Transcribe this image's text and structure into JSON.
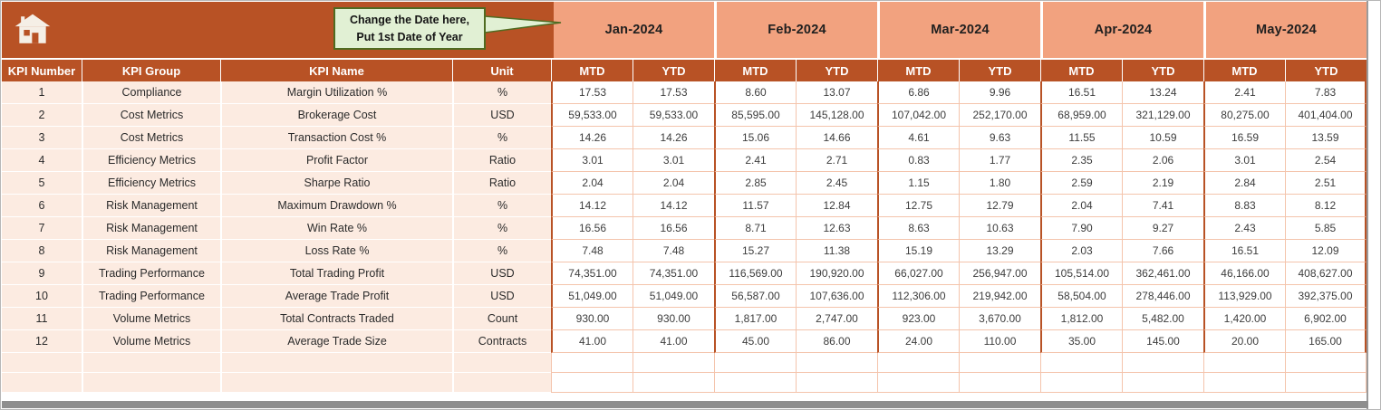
{
  "icons": {
    "home": "home-icon",
    "callout_pointer": "callout-pointer-icon"
  },
  "callout": {
    "line1": "Change the Date here,",
    "line2": "Put 1st Date of Year"
  },
  "table": {
    "left_headers": [
      "KPI Number",
      "KPI Group",
      "KPI Name",
      "Unit"
    ],
    "months": [
      "Jan-2024",
      "Feb-2024",
      "Mar-2024",
      "Apr-2024",
      "May-2024"
    ],
    "period_headers": [
      "MTD",
      "YTD"
    ],
    "rows": [
      {
        "kpi_number": "1",
        "kpi_group": "Compliance",
        "kpi_name": "Margin Utilization %",
        "unit": "%",
        "values": [
          "17.53",
          "17.53",
          "8.60",
          "13.07",
          "6.86",
          "9.96",
          "16.51",
          "13.24",
          "2.41",
          "7.83"
        ]
      },
      {
        "kpi_number": "2",
        "kpi_group": "Cost Metrics",
        "kpi_name": "Brokerage Cost",
        "unit": "USD",
        "values": [
          "59,533.00",
          "59,533.00",
          "85,595.00",
          "145,128.00",
          "107,042.00",
          "252,170.00",
          "68,959.00",
          "321,129.00",
          "80,275.00",
          "401,404.00"
        ]
      },
      {
        "kpi_number": "3",
        "kpi_group": "Cost Metrics",
        "kpi_name": "Transaction Cost %",
        "unit": "%",
        "values": [
          "14.26",
          "14.26",
          "15.06",
          "14.66",
          "4.61",
          "9.63",
          "11.55",
          "10.59",
          "16.59",
          "13.59"
        ]
      },
      {
        "kpi_number": "4",
        "kpi_group": "Efficiency Metrics",
        "kpi_name": "Profit Factor",
        "unit": "Ratio",
        "values": [
          "3.01",
          "3.01",
          "2.41",
          "2.71",
          "0.83",
          "1.77",
          "2.35",
          "2.06",
          "3.01",
          "2.54"
        ]
      },
      {
        "kpi_number": "5",
        "kpi_group": "Efficiency Metrics",
        "kpi_name": "Sharpe Ratio",
        "unit": "Ratio",
        "values": [
          "2.04",
          "2.04",
          "2.85",
          "2.45",
          "1.15",
          "1.80",
          "2.59",
          "2.19",
          "2.84",
          "2.51"
        ]
      },
      {
        "kpi_number": "6",
        "kpi_group": "Risk Management",
        "kpi_name": "Maximum Drawdown %",
        "unit": "%",
        "values": [
          "14.12",
          "14.12",
          "11.57",
          "12.84",
          "12.75",
          "12.79",
          "2.04",
          "7.41",
          "8.83",
          "8.12"
        ]
      },
      {
        "kpi_number": "7",
        "kpi_group": "Risk Management",
        "kpi_name": "Win Rate %",
        "unit": "%",
        "values": [
          "16.56",
          "16.56",
          "8.71",
          "12.63",
          "8.63",
          "10.63",
          "7.90",
          "9.27",
          "2.43",
          "5.85"
        ]
      },
      {
        "kpi_number": "8",
        "kpi_group": "Risk Management",
        "kpi_name": "Loss Rate %",
        "unit": "%",
        "values": [
          "7.48",
          "7.48",
          "15.27",
          "11.38",
          "15.19",
          "13.29",
          "2.03",
          "7.66",
          "16.51",
          "12.09"
        ]
      },
      {
        "kpi_number": "9",
        "kpi_group": "Trading Performance",
        "kpi_name": "Total Trading Profit",
        "unit": "USD",
        "values": [
          "74,351.00",
          "74,351.00",
          "116,569.00",
          "190,920.00",
          "66,027.00",
          "256,947.00",
          "105,514.00",
          "362,461.00",
          "46,166.00",
          "408,627.00"
        ]
      },
      {
        "kpi_number": "10",
        "kpi_group": "Trading Performance",
        "kpi_name": "Average Trade Profit",
        "unit": "USD",
        "values": [
          "51,049.00",
          "51,049.00",
          "56,587.00",
          "107,636.00",
          "112,306.00",
          "219,942.00",
          "58,504.00",
          "278,446.00",
          "113,929.00",
          "392,375.00"
        ]
      },
      {
        "kpi_number": "11",
        "kpi_group": "Volume Metrics",
        "kpi_name": "Total Contracts Traded",
        "unit": "Count",
        "values": [
          "930.00",
          "930.00",
          "1,817.00",
          "2,747.00",
          "923.00",
          "3,670.00",
          "1,812.00",
          "5,482.00",
          "1,420.00",
          "6,902.00"
        ]
      },
      {
        "kpi_number": "12",
        "kpi_group": "Volume Metrics",
        "kpi_name": "Average Trade Size",
        "unit": "Contracts",
        "values": [
          "41.00",
          "41.00",
          "45.00",
          "86.00",
          "24.00",
          "110.00",
          "35.00",
          "145.00",
          "20.00",
          "165.00"
        ]
      }
    ],
    "empty_row_count": 2
  },
  "colors": {
    "header_orange": "#B85225",
    "month_salmon": "#F2A27F",
    "row_peach": "#FCEBE1",
    "grid_line": "#F4C4AC",
    "callout_bg": "#E1F0D4",
    "callout_border": "#4F6B21"
  }
}
